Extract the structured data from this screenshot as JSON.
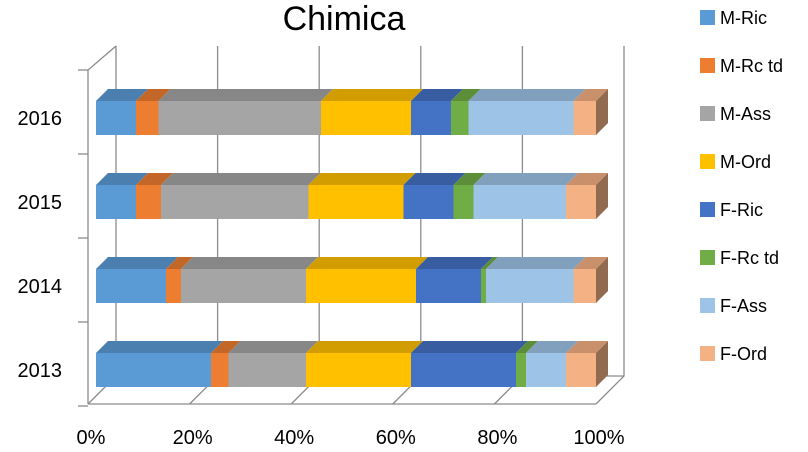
{
  "chart_data": {
    "type": "bar",
    "orientation": "horizontal",
    "stacked": "percent",
    "three_d": true,
    "title": "Chimica",
    "categories": [
      "2016",
      "2015",
      "2014",
      "2013"
    ],
    "series": [
      {
        "name": "M-Ric",
        "color": "#5b9bd5",
        "values": [
          8,
          8,
          14,
          23
        ]
      },
      {
        "name": "M-Rc td",
        "color": "#ed7d31",
        "values": [
          4.5,
          5,
          3,
          3.5
        ]
      },
      {
        "name": "M-Ass",
        "color": "#a5a5a5",
        "values": [
          32.5,
          29.5,
          25,
          15.5
        ]
      },
      {
        "name": "M-Ord",
        "color": "#ffc000",
        "values": [
          18,
          19,
          22,
          21
        ]
      },
      {
        "name": "F-Ric",
        "color": "#4472c4",
        "values": [
          8,
          10,
          13,
          21
        ]
      },
      {
        "name": "F-Rc td",
        "color": "#70ad47",
        "values": [
          3.5,
          4,
          1,
          2
        ]
      },
      {
        "name": "F-Ass",
        "color": "#9dc3e6",
        "values": [
          21,
          18.5,
          17.5,
          8
        ]
      },
      {
        "name": "F-Ord",
        "color": "#f4b183",
        "values": [
          4.5,
          6,
          4.5,
          6
        ]
      }
    ],
    "x_ticks": [
      "0%",
      "20%",
      "40%",
      "60%",
      "80%",
      "100%"
    ],
    "xlim": [
      0,
      100
    ],
    "grid": true,
    "legend_position": "right"
  }
}
